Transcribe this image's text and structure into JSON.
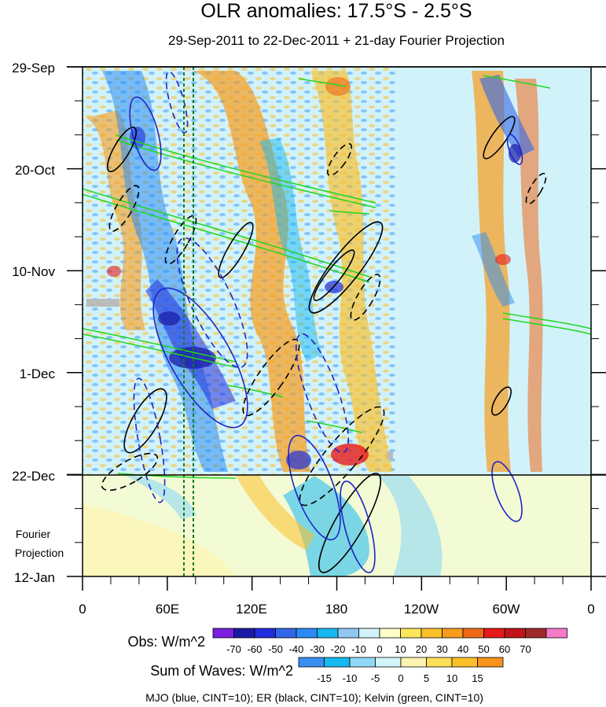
{
  "chart_data": {
    "type": "heatmap",
    "title": "OLR anomalies: 17.5°S - 2.5°S",
    "subtitle": "29-Sep-2011 to 22-Dec-2011 + 21-day Fourier Projection",
    "x_ticks": [
      "0",
      "60E",
      "120E",
      "180",
      "120W",
      "60W",
      "0"
    ],
    "y_ticks": [
      "29-Sep",
      "20-Oct",
      "10-Nov",
      "1-Dec",
      "22-Dec",
      "12-Jan"
    ],
    "projection_label_1": "Fourier",
    "projection_label_2": "Projection",
    "obs_label": "Obs: W/m^2",
    "obs_ticks": [
      "-70",
      "-60",
      "-50",
      "-40",
      "-30",
      "-20",
      "-10",
      "0",
      "10",
      "20",
      "30",
      "40",
      "50",
      "60",
      "70"
    ],
    "obs_colors": [
      "#7a1fe0",
      "#1a1aa6",
      "#1f2ddc",
      "#3366e6",
      "#2a8cf2",
      "#16b8f0",
      "#8fc8f0",
      "#d2f2fa",
      "#fdfdc8",
      "#fde65a",
      "#fbbf28",
      "#f79c1c",
      "#ef6a18",
      "#e61a1a",
      "#c01418",
      "#9e2a2a",
      "#f57ac8"
    ],
    "waves_label": "Sum of Waves: W/m^2",
    "waves_ticks": [
      "-15",
      "-10",
      "-5",
      "0",
      "5",
      "10",
      "15"
    ],
    "waves_colors": [
      "#3a8ef0",
      "#16b8f0",
      "#8fd8f6",
      "#d4f4fb",
      "#fdf4b0",
      "#fde05a",
      "#fbc02a",
      "#f7921c"
    ],
    "footer": "MJO (blue, CINT=10); ER (black, CINT=10); Kelvin (green, CINT=10)",
    "colors": {
      "mjo": "#1f24c9",
      "er": "#000000",
      "kelvin": "#1fd81f",
      "marker": "#1a7a1a"
    }
  }
}
